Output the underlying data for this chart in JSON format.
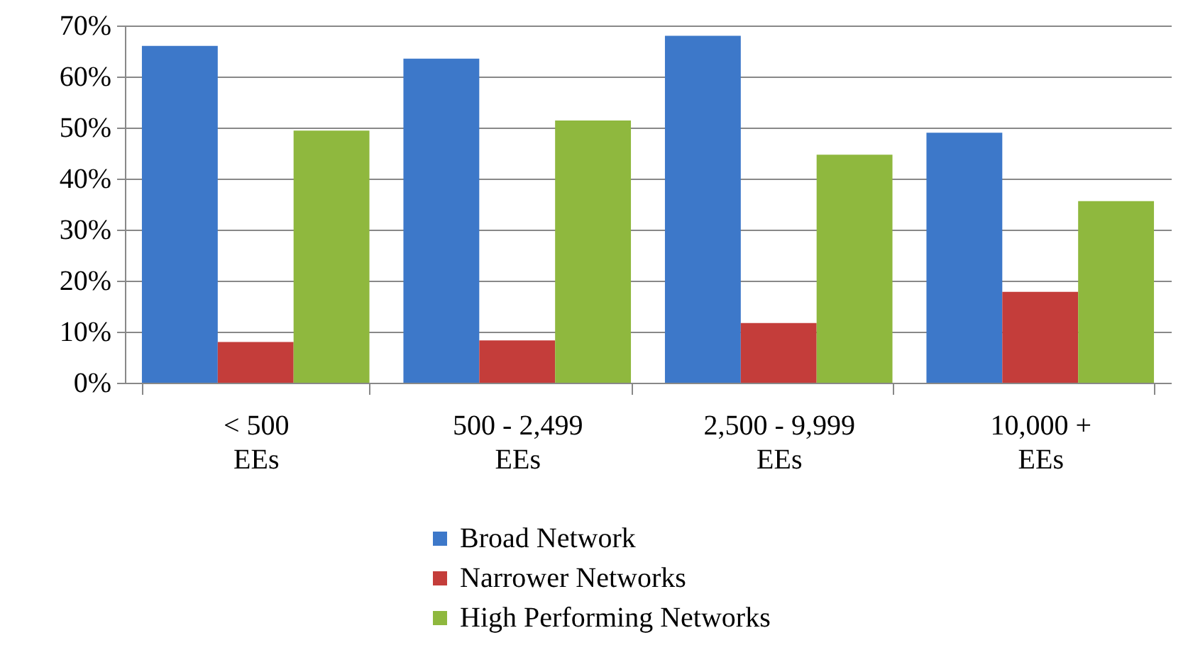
{
  "chart_data": {
    "type": "bar",
    "categories": [
      "< 500 EEs",
      "500 - 2,499 EEs",
      "2,500 - 9,999 EEs",
      "10,000 + EEs"
    ],
    "series": [
      {
        "name": "Broad Network",
        "color": "#3d78c9",
        "values": [
          66,
          63.5,
          68,
          49
        ]
      },
      {
        "name": "Narrower Networks",
        "color": "#c43d3a",
        "values": [
          8,
          8.3,
          11.7,
          17.8
        ]
      },
      {
        "name": "High Performing Networks",
        "color": "#8fb83e",
        "values": [
          49.4,
          51.4,
          44.7,
          35.6
        ]
      }
    ],
    "ylim": [
      0,
      70
    ],
    "yticks": [
      {
        "value": 0,
        "label": "0%"
      },
      {
        "value": 10,
        "label": "10%"
      },
      {
        "value": 20,
        "label": "20%"
      },
      {
        "value": 30,
        "label": "30%"
      },
      {
        "value": 40,
        "label": "40%"
      },
      {
        "value": 50,
        "label": "50%"
      },
      {
        "value": 60,
        "label": "60%"
      },
      {
        "value": 70,
        "label": "70%"
      }
    ],
    "grid": "y",
    "legend": "bottom"
  }
}
